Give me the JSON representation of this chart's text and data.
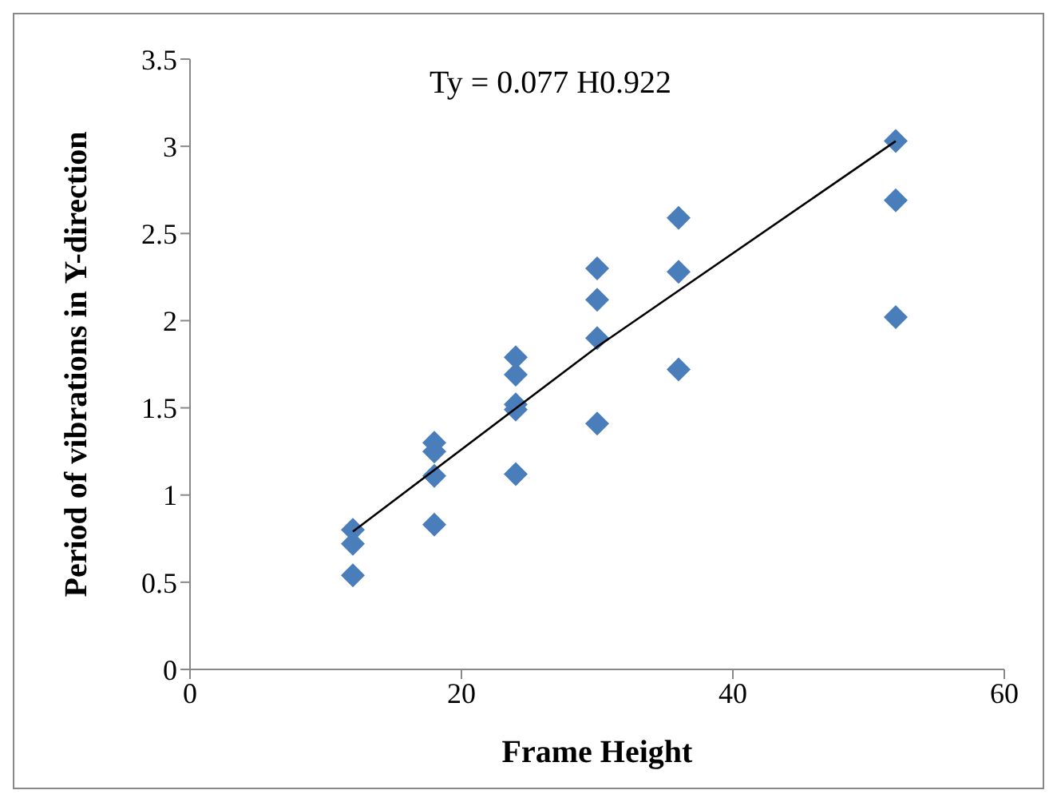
{
  "chart_data": {
    "type": "scatter",
    "xlabel": "Frame Height",
    "ylabel": "Period of vibrations in Y-direction",
    "annotations": [
      "Ty = 0.077 H0.922"
    ],
    "xlim": [
      0,
      60
    ],
    "xticks": [
      0,
      20,
      40,
      60
    ],
    "ylim": [
      0,
      3.5
    ],
    "yticks": [
      0,
      0.5,
      1,
      1.5,
      2,
      2.5,
      3,
      3.5
    ],
    "grid": false,
    "marker": "diamond",
    "series": [
      {
        "color": "#4a7ebb",
        "x": [
          12,
          12,
          12,
          18,
          18,
          18,
          18,
          24,
          24,
          24,
          24,
          24,
          30,
          30,
          30,
          30,
          36,
          36,
          36,
          52,
          52,
          52
        ],
        "values": [
          0.8,
          0.72,
          0.54,
          1.3,
          1.25,
          1.11,
          0.83,
          1.79,
          1.69,
          1.52,
          1.49,
          1.12,
          2.3,
          2.12,
          1.9,
          1.41,
          2.59,
          2.28,
          1.72,
          3.03,
          2.69,
          2.02
        ]
      },
      {
        "type": "line",
        "color": "#000000",
        "marker": "none",
        "x": [
          12,
          30,
          52
        ],
        "values": [
          0.79,
          1.85,
          3.03
        ]
      }
    ]
  }
}
